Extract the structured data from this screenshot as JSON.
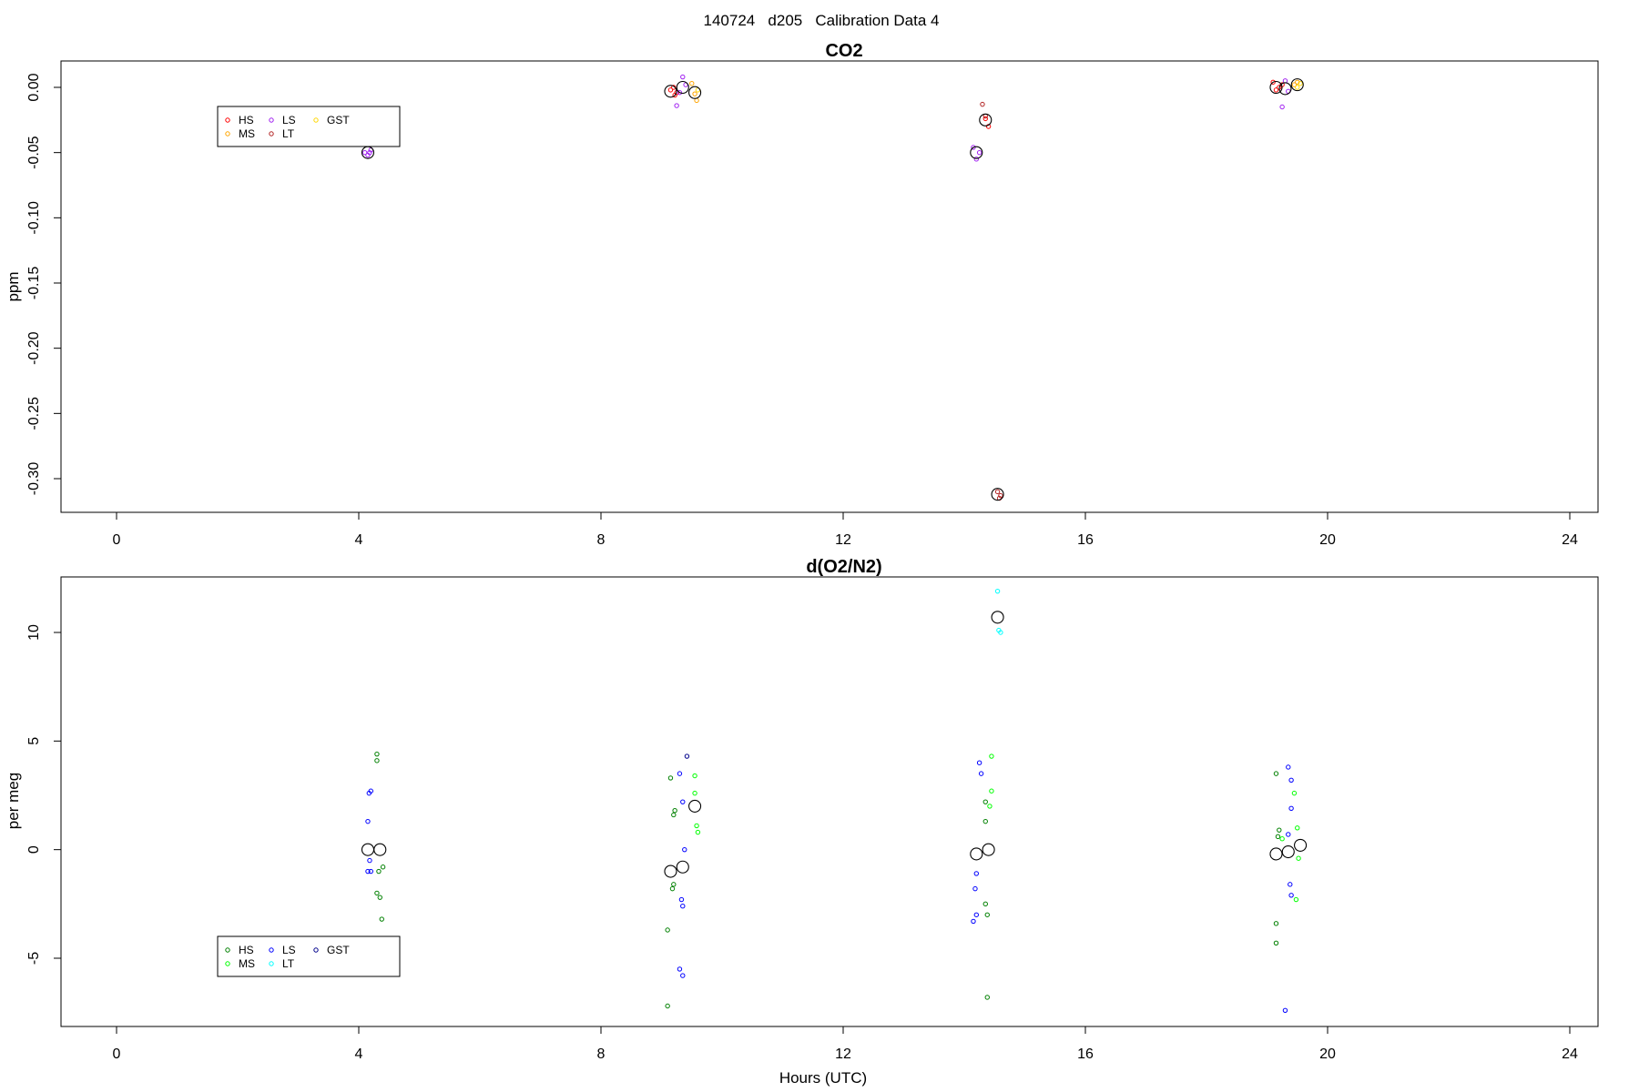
{
  "page_title": "140724   d205   Calibration Data 4",
  "chart_data": [
    {
      "type": "scatter",
      "title": "CO2",
      "xlabel": "",
      "ylabel": "ppm",
      "xlim": [
        0,
        24
      ],
      "ylim": [
        -0.3,
        0.0
      ],
      "xticks": [
        0,
        4,
        8,
        12,
        16,
        20,
        24
      ],
      "yticks": [
        0.0,
        -0.05,
        -0.1,
        -0.15,
        -0.2,
        -0.25,
        -0.3
      ],
      "ytick_labels": [
        "0.00",
        "-0.05",
        "-0.10",
        "-0.15",
        "-0.20",
        "-0.25",
        "-0.30"
      ],
      "grid": false,
      "legend_position": "top-left",
      "series": [
        {
          "name": "HS",
          "color": "#ff0000",
          "points": [
            [
              9.15,
              -0.002
            ],
            [
              9.2,
              0.0
            ],
            [
              9.25,
              -0.004
            ],
            [
              9.22,
              -0.006
            ],
            [
              19.1,
              0.004
            ],
            [
              19.15,
              -0.002
            ],
            [
              19.2,
              0.0
            ],
            [
              19.25,
              0.002
            ],
            [
              14.35,
              -0.024
            ],
            [
              14.4,
              -0.03
            ]
          ]
        },
        {
          "name": "MS",
          "color": "#ffa500",
          "points": [
            [
              9.5,
              0.003
            ],
            [
              9.55,
              -0.005
            ],
            [
              9.58,
              -0.01
            ],
            [
              19.45,
              0.002
            ],
            [
              19.5,
              0.004
            ]
          ]
        },
        {
          "name": "LS",
          "color": "#a020f0",
          "points": [
            [
              4.1,
              -0.05
            ],
            [
              4.15,
              -0.052
            ],
            [
              4.2,
              -0.048
            ],
            [
              4.18,
              -0.05
            ],
            [
              9.35,
              0.008
            ],
            [
              9.3,
              -0.004
            ],
            [
              9.25,
              -0.014
            ],
            [
              9.4,
              0.002
            ],
            [
              14.15,
              -0.046
            ],
            [
              14.2,
              -0.055
            ],
            [
              14.25,
              -0.05
            ],
            [
              19.3,
              0.005
            ],
            [
              19.35,
              -0.003
            ],
            [
              19.25,
              -0.015
            ]
          ]
        },
        {
          "name": "LT",
          "color": "#b22222",
          "points": [
            [
              14.3,
              -0.013
            ],
            [
              14.35,
              -0.022
            ],
            [
              14.55,
              -0.31
            ],
            [
              14.6,
              -0.313
            ],
            [
              14.58,
              -0.315
            ]
          ]
        },
        {
          "name": "GST",
          "color": "#ffd700",
          "points": [
            [
              19.55,
              0.003
            ],
            [
              19.5,
              0.0
            ],
            [
              9.6,
              -0.002
            ]
          ]
        }
      ],
      "means": [
        [
          4.15,
          -0.05
        ],
        [
          9.15,
          -0.003
        ],
        [
          9.35,
          0.0
        ],
        [
          9.55,
          -0.004
        ],
        [
          14.2,
          -0.05
        ],
        [
          14.35,
          -0.025
        ],
        [
          14.55,
          -0.312
        ],
        [
          19.15,
          0.0
        ],
        [
          19.3,
          -0.001
        ],
        [
          19.5,
          0.002
        ]
      ]
    },
    {
      "type": "scatter",
      "title": "d(O2/N2)",
      "xlabel": "Hours (UTC)",
      "ylabel": "per meg",
      "xlim": [
        0,
        24
      ],
      "ylim": [
        -7.5,
        12.5
      ],
      "xticks": [
        0,
        4,
        8,
        12,
        16,
        20,
        24
      ],
      "yticks": [
        10,
        5,
        0,
        -5
      ],
      "ytick_labels": [
        "10",
        "5",
        "0",
        "-5"
      ],
      "grid": false,
      "legend_position": "bottom-left",
      "series": [
        {
          "name": "HS",
          "color": "#008000",
          "points": [
            [
              4.3,
              4.4
            ],
            [
              4.3,
              4.1
            ],
            [
              4.3,
              -2.0
            ],
            [
              4.35,
              -2.2
            ],
            [
              4.38,
              -3.2
            ],
            [
              4.33,
              -1.0
            ],
            [
              4.4,
              -0.8
            ],
            [
              9.15,
              3.3
            ],
            [
              9.2,
              1.6
            ],
            [
              9.22,
              1.8
            ],
            [
              9.18,
              -1.8
            ],
            [
              9.2,
              -1.6
            ],
            [
              9.1,
              -3.7
            ],
            [
              9.1,
              -7.2
            ],
            [
              14.35,
              2.2
            ],
            [
              14.35,
              1.3
            ],
            [
              14.35,
              -2.5
            ],
            [
              14.38,
              -3.0
            ],
            [
              14.38,
              -6.8
            ],
            [
              19.15,
              3.5
            ],
            [
              19.2,
              0.9
            ],
            [
              19.18,
              0.6
            ],
            [
              19.15,
              -3.4
            ],
            [
              19.15,
              -4.3
            ]
          ]
        },
        {
          "name": "MS",
          "color": "#00ff00",
          "points": [
            [
              9.55,
              3.4
            ],
            [
              9.55,
              2.6
            ],
            [
              9.58,
              1.1
            ],
            [
              9.6,
              0.8
            ],
            [
              14.45,
              4.3
            ],
            [
              14.45,
              2.7
            ],
            [
              14.42,
              2.0
            ],
            [
              19.45,
              2.6
            ],
            [
              19.5,
              1.0
            ],
            [
              19.52,
              -0.4
            ],
            [
              19.48,
              -2.3
            ],
            [
              19.25,
              0.5
            ]
          ]
        },
        {
          "name": "LS",
          "color": "#0000ff",
          "points": [
            [
              4.2,
              2.7
            ],
            [
              4.17,
              2.6
            ],
            [
              4.15,
              1.3
            ],
            [
              4.18,
              -0.5
            ],
            [
              4.15,
              -1.0
            ],
            [
              4.2,
              -1.0
            ],
            [
              9.3,
              3.5
            ],
            [
              9.35,
              2.2
            ],
            [
              9.38,
              0.0
            ],
            [
              9.33,
              -2.3
            ],
            [
              9.35,
              -2.6
            ],
            [
              9.3,
              -5.5
            ],
            [
              9.35,
              -5.8
            ],
            [
              14.25,
              4.0
            ],
            [
              14.28,
              3.5
            ],
            [
              14.2,
              -1.1
            ],
            [
              14.18,
              -1.8
            ],
            [
              14.2,
              -3.0
            ],
            [
              14.15,
              -3.3
            ],
            [
              19.35,
              3.8
            ],
            [
              19.4,
              3.2
            ],
            [
              19.4,
              1.9
            ],
            [
              19.35,
              0.7
            ],
            [
              19.38,
              -1.6
            ],
            [
              19.4,
              -2.1
            ],
            [
              19.3,
              -7.4
            ]
          ]
        },
        {
          "name": "LT",
          "color": "#00ffff",
          "points": [
            [
              14.55,
              11.9
            ],
            [
              14.57,
              10.1
            ],
            [
              14.6,
              10.0
            ]
          ]
        },
        {
          "name": "GST",
          "color": "#00008b",
          "points": [
            [
              9.42,
              4.3
            ]
          ]
        }
      ],
      "means": [
        [
          4.15,
          0.0
        ],
        [
          4.35,
          0.0
        ],
        [
          9.15,
          -1.0
        ],
        [
          9.35,
          -0.8
        ],
        [
          9.55,
          2.0
        ],
        [
          14.2,
          -0.2
        ],
        [
          14.4,
          0.0
        ],
        [
          14.55,
          10.7
        ],
        [
          19.15,
          -0.2
        ],
        [
          19.35,
          -0.1
        ],
        [
          19.55,
          0.2
        ]
      ]
    }
  ]
}
